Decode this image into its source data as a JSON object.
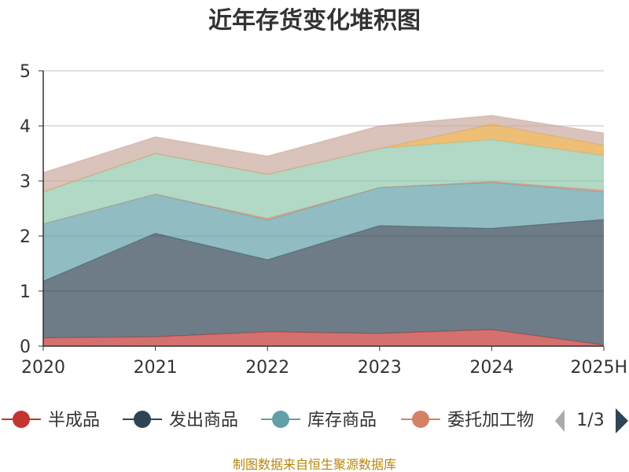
{
  "chart_data": {
    "type": "area",
    "title": "近年存货变化堆积图",
    "ylabel": "",
    "categories": [
      "2020",
      "2021",
      "2022",
      "2023",
      "2024",
      "2025H"
    ],
    "ylim": [
      0,
      5
    ],
    "yticks": [
      "0",
      "1",
      "2",
      "3",
      "4",
      "5"
    ],
    "grid": true,
    "stacked": true,
    "series": [
      {
        "name": "半成品",
        "color": "#c23531",
        "values": [
          0.15,
          0.17,
          0.26,
          0.23,
          0.3,
          0.02
        ]
      },
      {
        "name": "发出商品",
        "color": "#2f4554",
        "values": [
          1.03,
          1.88,
          1.31,
          1.96,
          1.84,
          2.28
        ]
      },
      {
        "name": "库存商品",
        "color": "#61a0a8",
        "values": [
          1.04,
          0.71,
          0.72,
          0.69,
          0.83,
          0.5
        ]
      },
      {
        "name": "委托加工物",
        "color": "#d48265",
        "values": [
          0.0,
          0.0,
          0.03,
          0.0,
          0.02,
          0.03
        ]
      },
      {
        "name": "",
        "color": "#91c7ae",
        "values": [
          0.58,
          0.74,
          0.8,
          0.71,
          0.76,
          0.63
        ]
      },
      {
        "name": "",
        "color": "#e6a23c",
        "values": [
          0.0,
          0.0,
          0.0,
          0.0,
          0.28,
          0.19
        ]
      },
      {
        "name": "",
        "color": "#c9a99e",
        "values": [
          0.35,
          0.3,
          0.33,
          0.41,
          0.16,
          0.22
        ]
      }
    ],
    "legend": {
      "position": "bottom",
      "visible_items": [
        "半成品",
        "发出商品",
        "库存商品",
        "委托加工物"
      ],
      "page": "1/3"
    },
    "source": "制图数据来自恒生聚源数据库"
  }
}
